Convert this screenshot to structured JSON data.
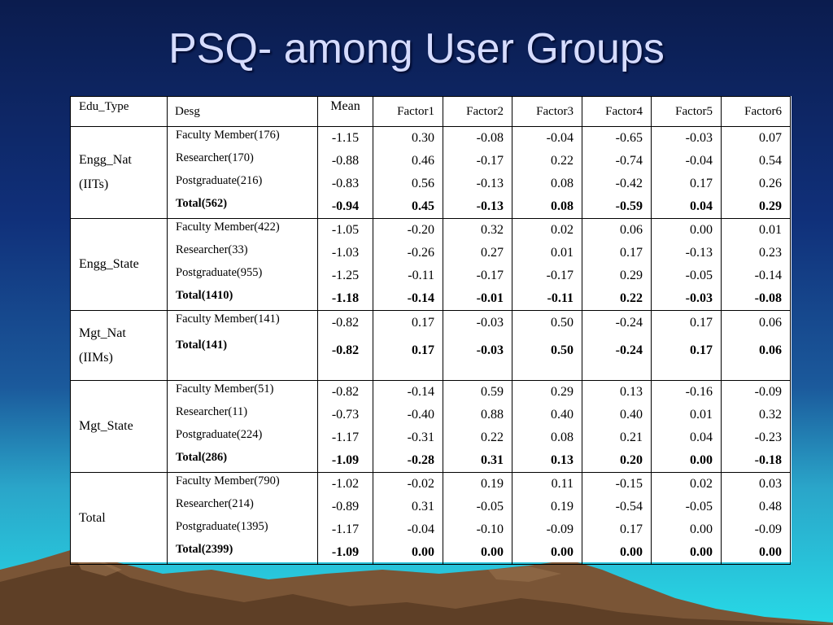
{
  "slide": {
    "title": "PSQ- among User Groups"
  },
  "table": {
    "headers": [
      "Edu_Type",
      "Desg",
      "Mean",
      "Factor1",
      "Factor2",
      "Factor3",
      "Factor4",
      "Factor5",
      "Factor6"
    ],
    "groups": [
      {
        "edu_type": [
          "Engg_Nat",
          "(IITs)"
        ],
        "rows": [
          {
            "desg": "Faculty Member(176)",
            "values": [
              "-1.15",
              "0.30",
              "-0.08",
              "-0.04",
              "-0.65",
              "-0.03",
              "0.07"
            ]
          },
          {
            "desg": "Researcher(170)",
            "values": [
              "-0.88",
              "0.46",
              "-0.17",
              "0.22",
              "-0.74",
              "-0.04",
              "0.54"
            ]
          },
          {
            "desg": "Postgraduate(216)",
            "values": [
              "-0.83",
              "0.56",
              "-0.13",
              "0.08",
              "-0.42",
              "0.17",
              "0.26"
            ]
          },
          {
            "desg": "Total(562)",
            "values": [
              "-0.94",
              "0.45",
              "-0.13",
              "0.08",
              "-0.59",
              "0.04",
              "0.29"
            ]
          }
        ]
      },
      {
        "edu_type": [
          "Engg_State"
        ],
        "rows": [
          {
            "desg": "Faculty Member(422)",
            "values": [
              "-1.05",
              "-0.20",
              "0.32",
              "0.02",
              "0.06",
              "0.00",
              "0.01"
            ]
          },
          {
            "desg": "Researcher(33)",
            "values": [
              "-1.03",
              "-0.26",
              "0.27",
              "0.01",
              "0.17",
              "-0.13",
              "0.23"
            ]
          },
          {
            "desg": "Postgraduate(955)",
            "values": [
              "-1.25",
              "-0.11",
              "-0.17",
              "-0.17",
              "0.29",
              "-0.05",
              "-0.14"
            ]
          },
          {
            "desg": "Total(1410)",
            "values": [
              "-1.18",
              "-0.14",
              "-0.01",
              "-0.11",
              "0.22",
              "-0.03",
              "-0.08"
            ]
          }
        ]
      },
      {
        "edu_type": [
          "Mgt_Nat",
          "(IIMs)"
        ],
        "rows": [
          {
            "desg": "Faculty Member(141)",
            "values": [
              "-0.82",
              "0.17",
              "-0.03",
              "0.50",
              "-0.24",
              "0.17",
              "0.06"
            ]
          },
          {
            "desg": "Total(141)",
            "values": [
              "-0.82",
              "0.17",
              "-0.03",
              "0.50",
              "-0.24",
              "0.17",
              "0.06"
            ]
          }
        ]
      },
      {
        "edu_type": [
          "Mgt_State"
        ],
        "rows": [
          {
            "desg": "Faculty Member(51)",
            "values": [
              "-0.82",
              "-0.14",
              "0.59",
              "0.29",
              "0.13",
              "-0.16",
              "-0.09"
            ]
          },
          {
            "desg": "Researcher(11)",
            "values": [
              "-0.73",
              "-0.40",
              "0.88",
              "0.40",
              "0.40",
              "0.01",
              "0.32"
            ]
          },
          {
            "desg": "Postgraduate(224)",
            "values": [
              "-1.17",
              "-0.31",
              "0.22",
              "0.08",
              "0.21",
              "0.04",
              "-0.23"
            ]
          },
          {
            "desg": "Total(286)",
            "values": [
              "-1.09",
              "-0.28",
              "0.31",
              "0.13",
              "0.20",
              "0.00",
              "-0.18"
            ]
          }
        ]
      },
      {
        "edu_type": [
          "Total"
        ],
        "rows": [
          {
            "desg": "Faculty Member(790)",
            "values": [
              "-1.02",
              "-0.02",
              "0.19",
              "0.11",
              "-0.15",
              "0.02",
              "0.03"
            ]
          },
          {
            "desg": "Researcher(214)",
            "values": [
              "-0.89",
              "0.31",
              "-0.05",
              "0.19",
              "-0.54",
              "-0.05",
              "0.48"
            ]
          },
          {
            "desg": "Postgraduate(1395)",
            "values": [
              "-1.17",
              "-0.04",
              "-0.10",
              "-0.09",
              "0.17",
              "0.00",
              "-0.09"
            ]
          },
          {
            "desg": "Total(2399)",
            "values": [
              "-1.09",
              "0.00",
              "0.00",
              "0.00",
              "0.00",
              "0.00",
              "0.00"
            ]
          }
        ]
      }
    ]
  },
  "colors": {
    "bg_top": "#0b1c4e",
    "bg_bottom": "#27d9e6",
    "title": "#d6dcff",
    "mountain": "#6b4a2f"
  }
}
